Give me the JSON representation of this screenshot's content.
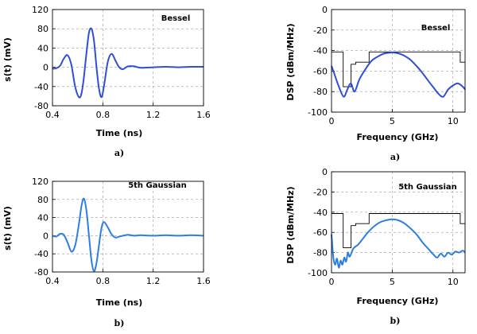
{
  "chart_data": [
    {
      "type": "line",
      "xlabel": "Time (ns)",
      "ylabel": "s(t) (mV)",
      "legend": "Bessel",
      "caption": "a)",
      "xlim": [
        0.4,
        1.6
      ],
      "ylim": [
        -80,
        120
      ],
      "xticks": [
        "0.4",
        "0.8",
        "1.2",
        "1.6"
      ],
      "yticks": [
        "120",
        "80",
        "40",
        "0",
        "-40",
        "-80"
      ],
      "grid": true,
      "line_color": "#2f4fd6",
      "series": [
        {
          "x": [
            0.4,
            0.43,
            0.46,
            0.49,
            0.52,
            0.55,
            0.58,
            0.61,
            0.63,
            0.65,
            0.67,
            0.69,
            0.71,
            0.73,
            0.75,
            0.77,
            0.79,
            0.81,
            0.84,
            0.87,
            0.9,
            0.93,
            0.96,
            1.0,
            1.05,
            1.1,
            1.2,
            1.3,
            1.4,
            1.5,
            1.6
          ],
          "y": [
            -3,
            -2,
            3,
            18,
            25,
            5,
            -40,
            -62,
            -55,
            -20,
            30,
            72,
            80,
            55,
            0,
            -45,
            -62,
            -38,
            12,
            28,
            14,
            0,
            -4,
            2,
            2,
            -1,
            0,
            1,
            0,
            1,
            1
          ]
        }
      ]
    },
    {
      "type": "line",
      "xlabel": "Frequency (GHz)",
      "ylabel": "DSP (dBm/MHz)",
      "legend": "Bessel",
      "caption": "a)",
      "xlim": [
        0,
        11
      ],
      "ylim": [
        -100,
        0
      ],
      "xticks": [
        "0",
        "5",
        "10"
      ],
      "yticks": [
        "0",
        "-20",
        "-40",
        "-60",
        "-80",
        "-100"
      ],
      "grid": true,
      "line_color": "#2f4fd6",
      "mask_color": "#000000",
      "mask": {
        "x": [
          0,
          0.96,
          0.96,
          1.61,
          1.61,
          1.99,
          1.99,
          3.1,
          3.1,
          10.6,
          10.6,
          11
        ],
        "y": [
          -41.3,
          -41.3,
          -75.3,
          -75.3,
          -53.3,
          -53.3,
          -51.3,
          -51.3,
          -41.3,
          -41.3,
          -51.3,
          -51.3
        ]
      },
      "series": [
        {
          "x": [
            0,
            0.3,
            0.6,
            1.0,
            1.3,
            1.6,
            1.9,
            2.3,
            2.8,
            3.3,
            3.8,
            4.3,
            4.8,
            5.2,
            5.6,
            6.0,
            6.5,
            7.0,
            7.5,
            8.0,
            8.4,
            8.8,
            9.2,
            9.6,
            10.0,
            10.4,
            10.8,
            11.0
          ],
          "y": [
            -55,
            -65,
            -75,
            -85,
            -78,
            -72,
            -80,
            -68,
            -58,
            -50,
            -46,
            -43,
            -42,
            -42,
            -43,
            -45,
            -49,
            -55,
            -62,
            -70,
            -76,
            -82,
            -85,
            -78,
            -74,
            -72,
            -75,
            -78
          ]
        }
      ]
    },
    {
      "type": "line",
      "xlabel": "Time (ns)",
      "ylabel": "s(t) (mV)",
      "legend": "5th Gaussian",
      "caption": "b)",
      "xlim": [
        0.4,
        1.6
      ],
      "ylim": [
        -80,
        120
      ],
      "xticks": [
        "0.4",
        "0.8",
        "1.2",
        "1.6"
      ],
      "yticks": [
        "120",
        "80",
        "40",
        "0",
        "-40",
        "-80"
      ],
      "grid": true,
      "line_color": "#2c7fe0",
      "series": [
        {
          "x": [
            0.4,
            0.43,
            0.46,
            0.49,
            0.52,
            0.55,
            0.58,
            0.61,
            0.63,
            0.65,
            0.67,
            0.69,
            0.71,
            0.73,
            0.75,
            0.77,
            0.79,
            0.81,
            0.84,
            0.87,
            0.9,
            0.93,
            0.96,
            1.0,
            1.05,
            1.1,
            1.2,
            1.3,
            1.4,
            1.5,
            1.6
          ],
          "y": [
            0,
            -2,
            4,
            2,
            -15,
            -35,
            -22,
            25,
            65,
            82,
            55,
            0,
            -55,
            -78,
            -60,
            -20,
            18,
            30,
            18,
            3,
            -4,
            -2,
            0,
            2,
            0,
            1,
            0,
            1,
            0,
            1,
            0
          ]
        }
      ]
    },
    {
      "type": "line",
      "xlabel": "Frequency (GHz)",
      "ylabel": "DSP (dBm/MHz)",
      "legend": "5th Gaussian",
      "caption": "b)",
      "xlim": [
        0,
        11
      ],
      "ylim": [
        -100,
        0
      ],
      "xticks": [
        "0",
        "5",
        "10"
      ],
      "yticks": [
        "0",
        "-20",
        "-40",
        "-60",
        "-80",
        "-100"
      ],
      "grid": true,
      "line_color": "#2c7fe0",
      "mask_color": "#000000",
      "mask": {
        "x": [
          0,
          0.96,
          0.96,
          1.61,
          1.61,
          1.99,
          1.99,
          3.1,
          3.1,
          10.6,
          10.6,
          11
        ],
        "y": [
          -41.3,
          -41.3,
          -75.3,
          -75.3,
          -53.3,
          -53.3,
          -51.3,
          -51.3,
          -41.3,
          -41.3,
          -51.3,
          -51.3
        ]
      },
      "series": [
        {
          "x": [
            0,
            0.15,
            0.3,
            0.45,
            0.6,
            0.75,
            0.9,
            1.05,
            1.2,
            1.35,
            1.5,
            1.8,
            2.2,
            2.6,
            3.0,
            3.5,
            4.0,
            4.5,
            5.0,
            5.5,
            6.0,
            6.5,
            7.0,
            7.5,
            7.8,
            8.1,
            8.4,
            8.7,
            9.0,
            9.3,
            9.6,
            9.9,
            10.2,
            10.5,
            10.8,
            11.0
          ],
          "y": [
            -62,
            -85,
            -92,
            -86,
            -95,
            -88,
            -92,
            -85,
            -89,
            -80,
            -84,
            -76,
            -72,
            -66,
            -60,
            -54,
            -50,
            -48,
            -47,
            -48,
            -51,
            -56,
            -62,
            -70,
            -74,
            -78,
            -82,
            -85,
            -81,
            -84,
            -80,
            -82,
            -79,
            -80,
            -78,
            -80
          ]
        }
      ]
    }
  ]
}
